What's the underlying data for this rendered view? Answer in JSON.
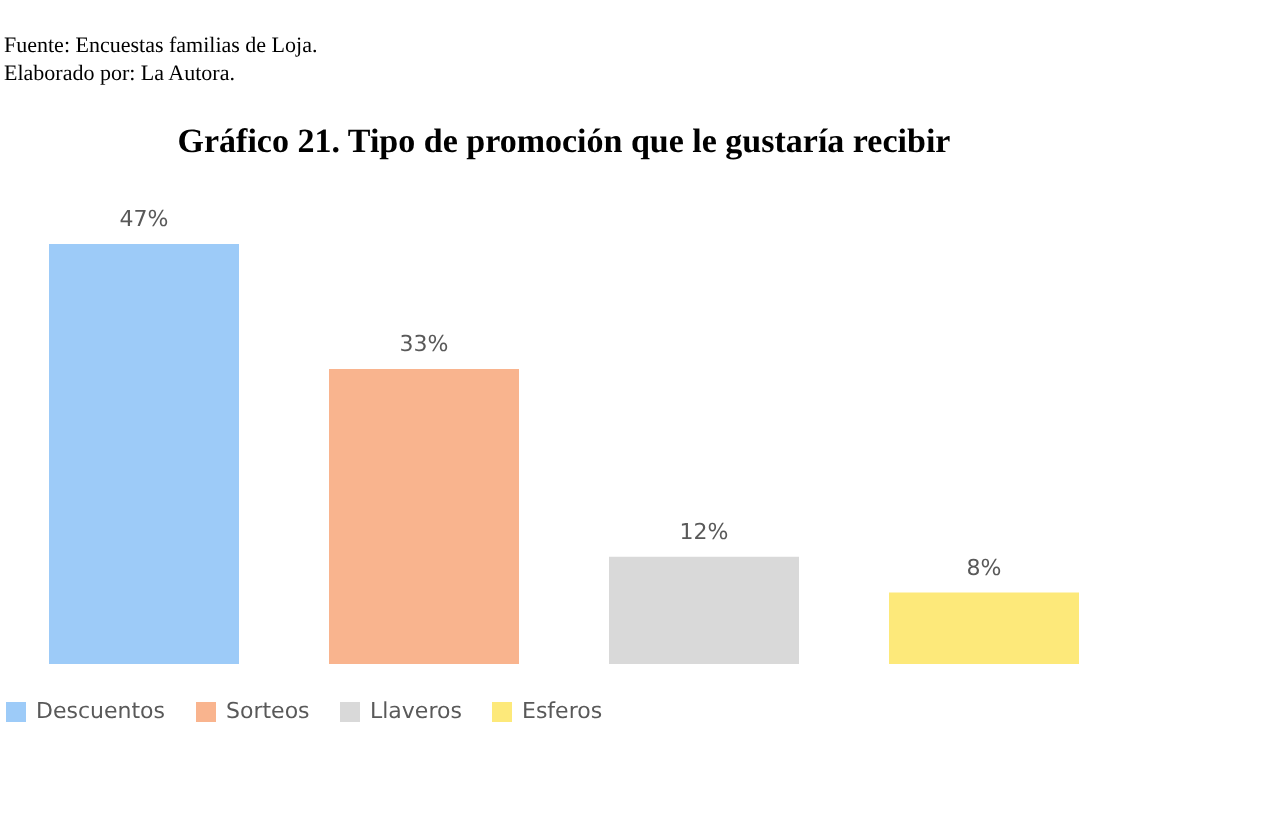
{
  "chart_data": {
    "type": "bar",
    "title": "Gráfico 21. Tipo de promoción que le gustaría recibir",
    "categories": [
      null,
      null,
      null,
      null
    ],
    "series": [
      {
        "name": "Descuentos",
        "color": "#9dcbf8",
        "values": [
          47,
          null,
          null,
          null
        ],
        "value_labels": [
          "47%",
          null,
          null,
          null
        ]
      },
      {
        "name": "Sorteos",
        "color": "#f9b48e",
        "values": [
          null,
          33,
          null,
          null
        ],
        "value_labels": [
          null,
          "33%",
          null,
          null
        ]
      },
      {
        "name": "Llaveros",
        "color": "#d9d9d9",
        "values": [
          null,
          null,
          12,
          null
        ],
        "value_labels": [
          null,
          null,
          "12%",
          null
        ]
      },
      {
        "name": "Esferos",
        "color": "#fde97a",
        "values": [
          null,
          null,
          null,
          8
        ],
        "value_labels": [
          null,
          null,
          null,
          "8%"
        ]
      }
    ],
    "annotations": [
      "Fuente: Encuestas familias de Loja.",
      "Elaborado por: La Autora."
    ],
    "stacked": true,
    "legend": "bottom",
    "grid": false,
    "tick_labels": false
  }
}
